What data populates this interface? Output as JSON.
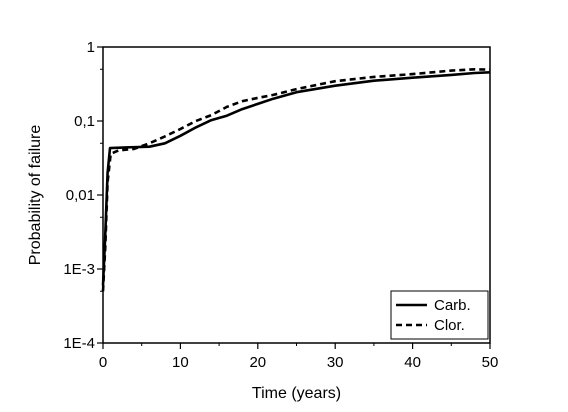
{
  "chart_data": {
    "type": "line",
    "title": "",
    "xlabel": "Time (years)",
    "ylabel": "Probability of failure",
    "x_scale": "linear",
    "y_scale": "log",
    "xlim": [
      0,
      50
    ],
    "ylim": [
      0.0001,
      1
    ],
    "x_ticks": [
      {
        "value": 0,
        "label": "0"
      },
      {
        "value": 10,
        "label": "10"
      },
      {
        "value": 20,
        "label": "20"
      },
      {
        "value": 30,
        "label": "30"
      },
      {
        "value": 40,
        "label": "40"
      },
      {
        "value": 50,
        "label": "50"
      }
    ],
    "y_ticks": [
      {
        "value": 0.0001,
        "label": "1E-4"
      },
      {
        "value": 0.001,
        "label": "1E-3"
      },
      {
        "value": 0.01,
        "label": "0,01"
      },
      {
        "value": 0.1,
        "label": "0,1"
      },
      {
        "value": 1,
        "label": "1"
      }
    ],
    "grid": false,
    "legend_position": "bottom-right",
    "series": [
      {
        "name": "Carb.",
        "color": "#000000",
        "dash": "solid",
        "points": [
          [
            0.0,
            0.0006
          ],
          [
            0.3,
            0.003
          ],
          [
            0.6,
            0.02
          ],
          [
            0.9,
            0.043
          ],
          [
            3,
            0.044
          ],
          [
            6,
            0.045
          ],
          [
            8,
            0.05
          ],
          [
            10,
            0.063
          ],
          [
            12,
            0.082
          ],
          [
            14,
            0.103
          ],
          [
            16,
            0.118
          ],
          [
            18,
            0.145
          ],
          [
            20,
            0.17
          ],
          [
            22,
            0.2
          ],
          [
            25,
            0.245
          ],
          [
            30,
            0.3
          ],
          [
            35,
            0.35
          ],
          [
            40,
            0.385
          ],
          [
            45,
            0.42
          ],
          [
            48,
            0.445
          ],
          [
            50,
            0.455
          ]
        ]
      },
      {
        "name": "Clor.",
        "color": "#000000",
        "dash": "dashed",
        "points": [
          [
            0.0,
            0.0005
          ],
          [
            0.3,
            0.002
          ],
          [
            0.6,
            0.015
          ],
          [
            1.0,
            0.036
          ],
          [
            2,
            0.04
          ],
          [
            4,
            0.042
          ],
          [
            6,
            0.05
          ],
          [
            8,
            0.062
          ],
          [
            10,
            0.078
          ],
          [
            12,
            0.1
          ],
          [
            14,
            0.12
          ],
          [
            16,
            0.155
          ],
          [
            18,
            0.185
          ],
          [
            20,
            0.205
          ],
          [
            22,
            0.225
          ],
          [
            25,
            0.27
          ],
          [
            30,
            0.345
          ],
          [
            35,
            0.395
          ],
          [
            40,
            0.43
          ],
          [
            45,
            0.48
          ],
          [
            48,
            0.5
          ],
          [
            50,
            0.495
          ]
        ]
      }
    ]
  }
}
